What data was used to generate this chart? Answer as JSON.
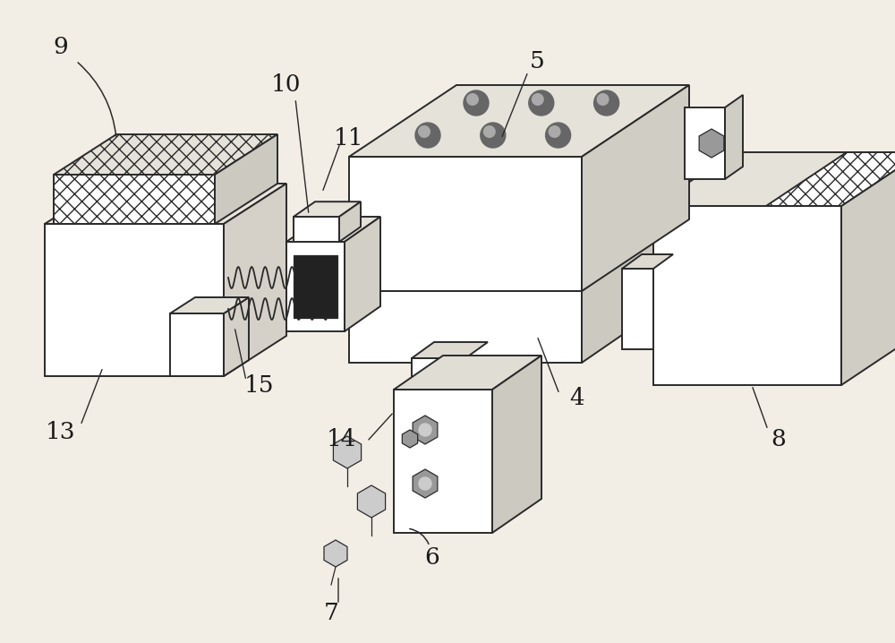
{
  "bg_color": "#f2ede5",
  "line_color": "#2a2a2a",
  "lw": 1.4,
  "lw_thin": 0.9
}
